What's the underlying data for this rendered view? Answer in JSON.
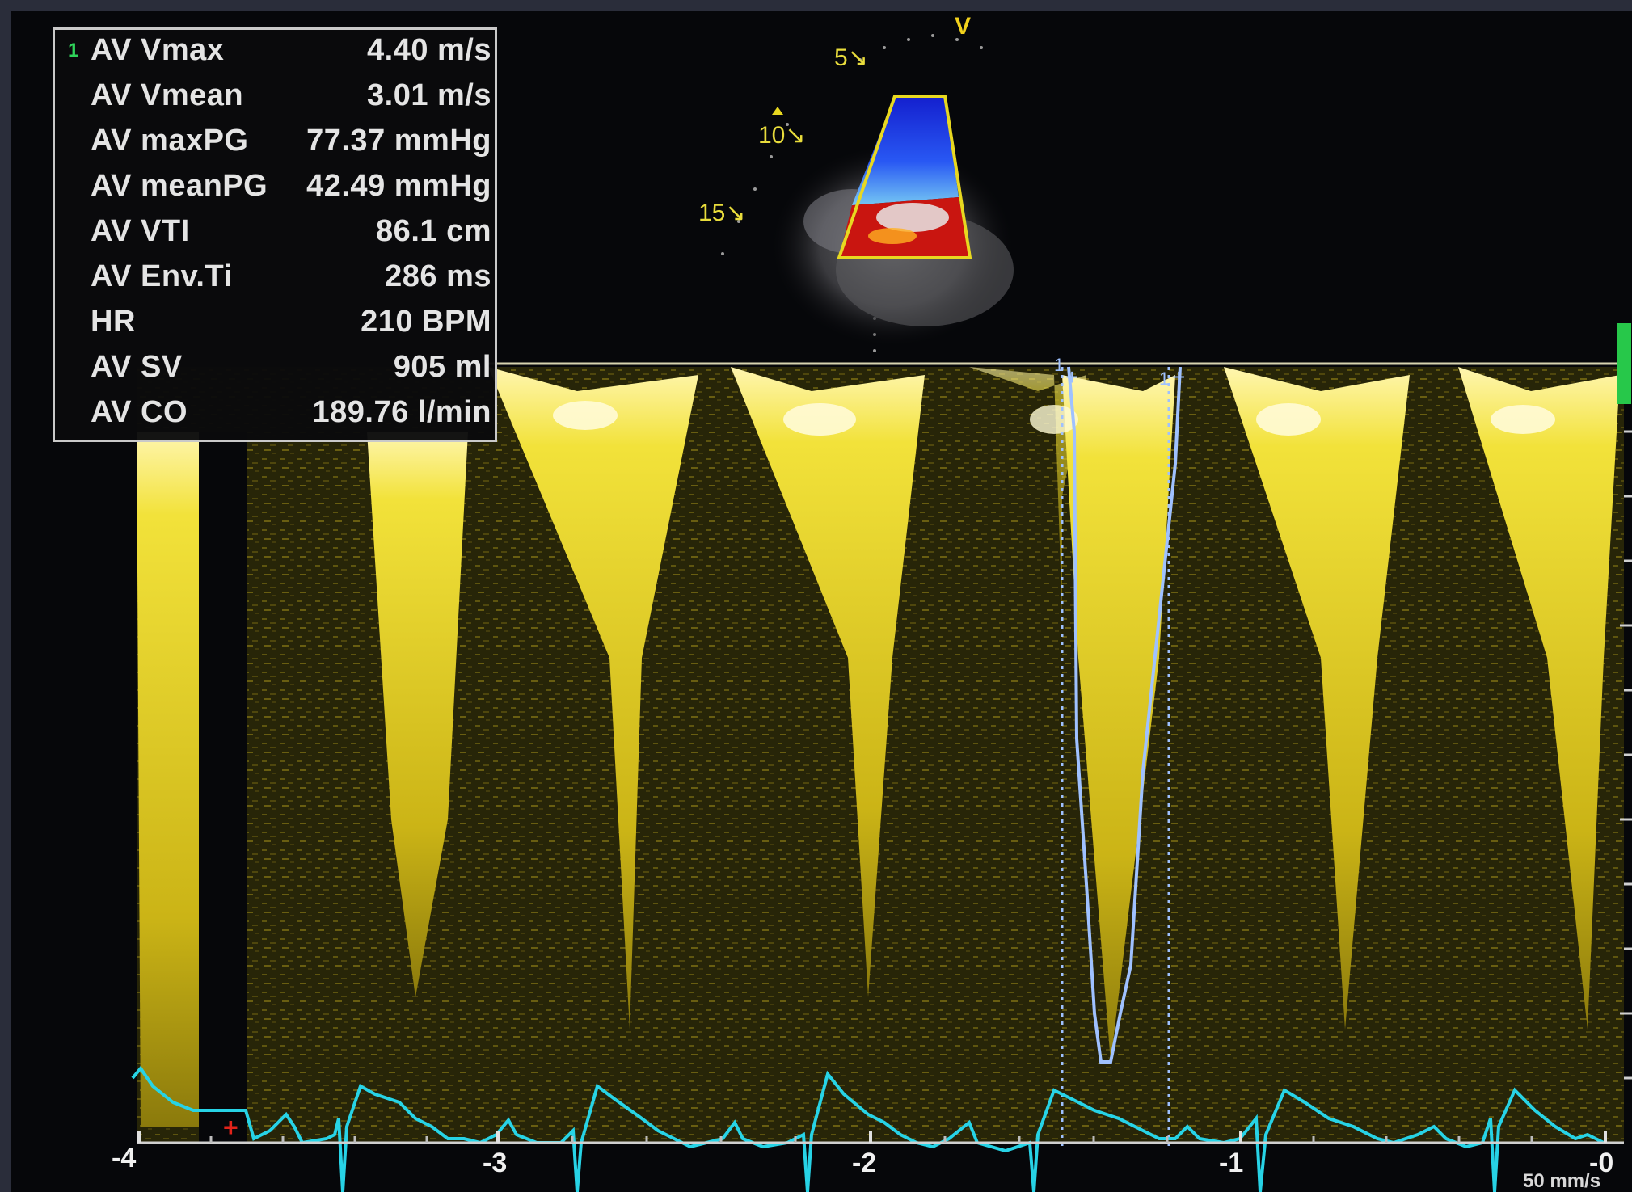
{
  "measurements": [
    {
      "index": "1",
      "label": "AV Vmax",
      "value": "4.40 m/s"
    },
    {
      "index": "",
      "label": "AV Vmean",
      "value": "3.01 m/s"
    },
    {
      "index": "",
      "label": "AV maxPG",
      "value": "77.37 mmHg"
    },
    {
      "index": "",
      "label": "AV meanPG",
      "value": "42.49 mmHg"
    },
    {
      "index": "",
      "label": "AV VTI",
      "value": "86.1 cm"
    },
    {
      "index": "",
      "label": "AV Env.Ti",
      "value": "286 ms"
    },
    {
      "index": "",
      "label": "HR",
      "value": "210 BPM"
    },
    {
      "index": "",
      "label": "AV SV",
      "value": "905 ml"
    },
    {
      "index": "",
      "label": "AV CO",
      "value": "189.76 l/min"
    }
  ],
  "depth_scale": [
    "5",
    "10",
    "15"
  ],
  "view_marker": "V",
  "time_axis": [
    "-4",
    "-3",
    "-2",
    "-1",
    "-0"
  ],
  "sweep_speed": "50 mm/s",
  "caliper_marks": [
    "1",
    "1"
  ],
  "colors": {
    "spectral": "#e8d820",
    "ecg": "#27d3e6",
    "trace": "#9fc1ff",
    "measurement_text": "#e4e4e4",
    "sector_outline": "#e8d820"
  }
}
